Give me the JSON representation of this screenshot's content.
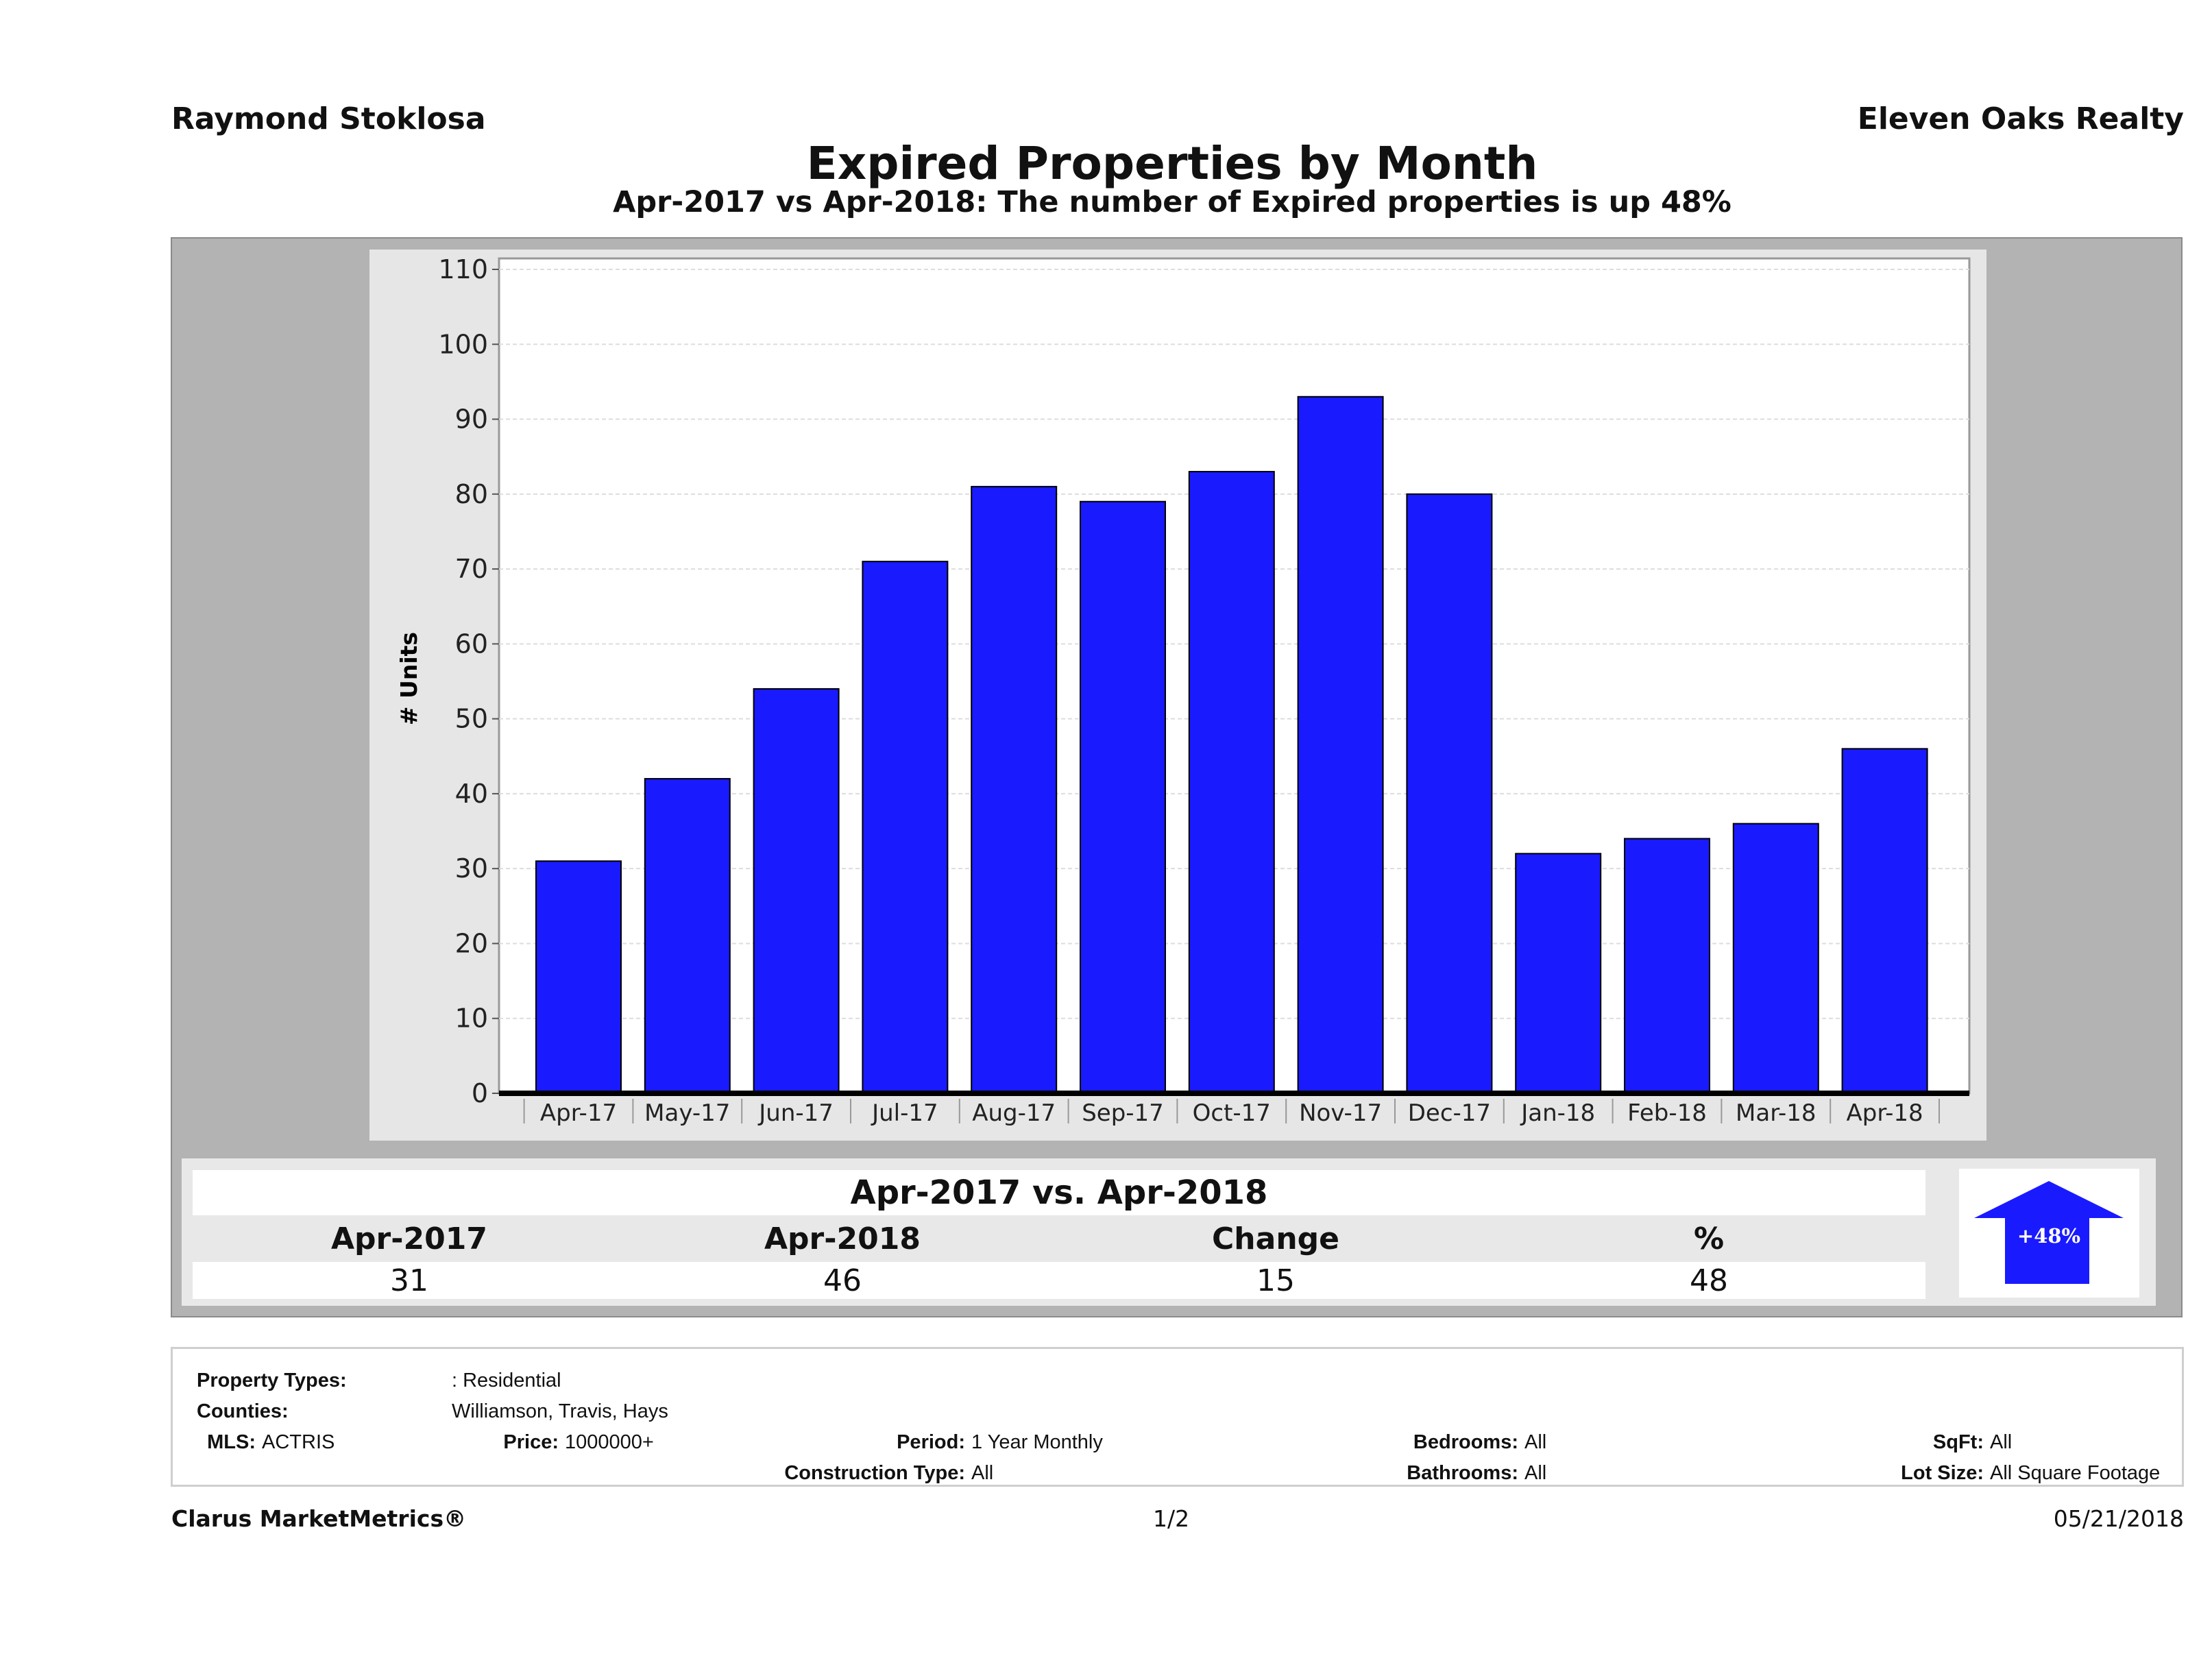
{
  "header": {
    "agent": "Raymond Stoklosa",
    "brokerage": "Eleven Oaks Realty",
    "title": "Expired Properties by Month",
    "subtitle": "Apr-2017 vs Apr-2018: The number of Expired  properties is up 48%"
  },
  "chart_data": {
    "type": "bar",
    "title": "Expired Properties by Month",
    "xlabel": "",
    "ylabel": "# Units",
    "ylim": [
      0,
      110
    ],
    "yticks": [
      0,
      10,
      20,
      30,
      40,
      50,
      60,
      70,
      80,
      90,
      100,
      110
    ],
    "grid": true,
    "categories": [
      "Apr-17",
      "May-17",
      "Jun-17",
      "Jul-17",
      "Aug-17",
      "Sep-17",
      "Oct-17",
      "Nov-17",
      "Dec-17",
      "Jan-18",
      "Feb-18",
      "Mar-18",
      "Apr-18"
    ],
    "values": [
      31,
      42,
      54,
      71,
      81,
      79,
      83,
      93,
      80,
      32,
      34,
      36,
      46
    ],
    "bar_color": "#1a1aff"
  },
  "summary": {
    "title": "Apr-2017 vs. Apr-2018",
    "headers": [
      "Apr-2017",
      "Apr-2018",
      "Change",
      "%"
    ],
    "values": [
      "31",
      "46",
      "15",
      "48"
    ],
    "badge": "+48%"
  },
  "filters": {
    "property_types_label": "Property Types:",
    "property_types": ": Residential",
    "counties_label": "Counties:",
    "counties": "Williamson, Travis, Hays",
    "mls_label": "MLS:",
    "mls": "ACTRIS",
    "price_label": "Price:",
    "price": "1000000+",
    "period_label": "Period:",
    "period": "1 Year Monthly",
    "construction_label": "Construction Type:",
    "construction": "All",
    "bedrooms_label": "Bedrooms:",
    "bedrooms": "All",
    "bathrooms_label": "Bathrooms:",
    "bathrooms": "All",
    "sqft_label": "SqFt:",
    "sqft": "All",
    "lotsize_label": "Lot Size:",
    "lotsize": "All Square Footage"
  },
  "footer": {
    "brand": "Clarus MarketMetrics®",
    "page": "1/2",
    "date": "05/21/2018"
  }
}
